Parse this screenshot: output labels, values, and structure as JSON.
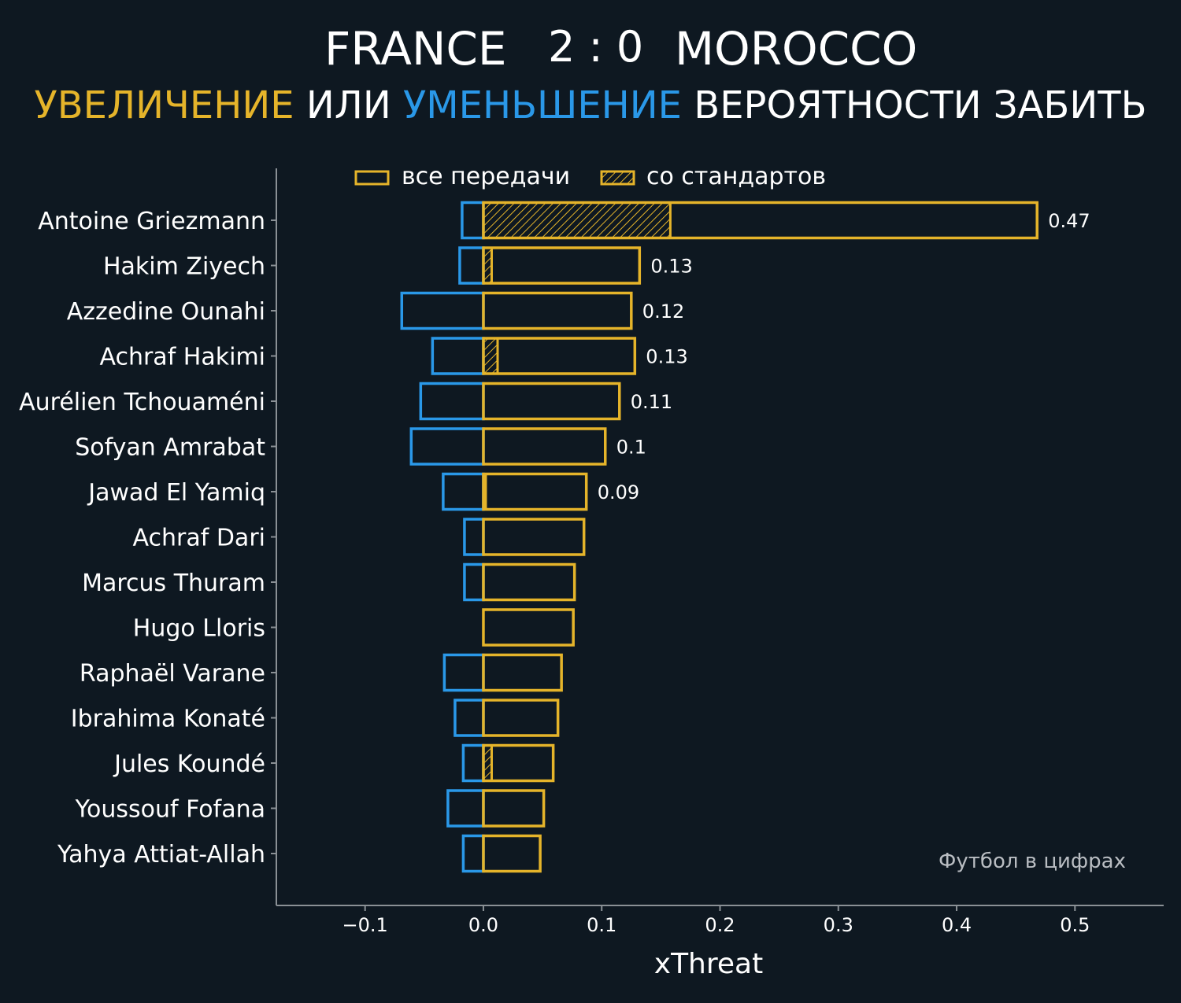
{
  "header": {
    "home_team": "FRANCE",
    "score": "2 : 0",
    "away_team": "MOROCCO",
    "subtitle_increase": "УВЕЛИЧЕНИЕ",
    "subtitle_or": "ИЛИ",
    "subtitle_decrease": "УМЕНЬШЕНИЕ",
    "subtitle_rest": "ВЕРОЯТНОСТИ ЗАБИТЬ"
  },
  "watermark": "Футбол в цифрах",
  "colors": {
    "background": "#0e1821",
    "increase": "#e5b42a",
    "decrease": "#2a98e8",
    "axis": "#8a9095",
    "text": "#ffffff"
  },
  "chart_data": {
    "type": "bar",
    "orientation": "horizontal",
    "xlabel": "xThreat",
    "ylabel": "",
    "xlim": [
      -0.175,
      0.575
    ],
    "xticks": [
      -0.1,
      0.0,
      0.1,
      0.2,
      0.3,
      0.4,
      0.5
    ],
    "xtick_labels": [
      "−0.1",
      "0.0",
      "0.1",
      "0.2",
      "0.3",
      "0.4",
      "0.5"
    ],
    "grid": false,
    "legend": {
      "placement": "top-center",
      "entries": [
        "все передачи",
        "со стандартов"
      ]
    },
    "categories": [
      "Antoine Griezmann",
      "Hakim Ziyech",
      "Azzedine Ounahi",
      "Achraf Hakimi",
      "Aurélien Tchouaméni",
      "Sofyan Amrabat",
      "Jawad El Yamiq",
      "Achraf Dari",
      "Marcus Thuram",
      "Hugo Lloris",
      "Raphaël Varane",
      "Ibrahima Konaté",
      "Jules Koundé",
      "Youssouf Fofana",
      "Yahya Attiat-Allah"
    ],
    "series": [
      {
        "name": "все передачи",
        "role": "increase",
        "values": [
          0.468,
          0.132,
          0.125,
          0.128,
          0.115,
          0.103,
          0.087,
          0.085,
          0.077,
          0.076,
          0.066,
          0.063,
          0.059,
          0.051,
          0.048
        ]
      },
      {
        "name": "со стандартов",
        "role": "increase-set-pieces",
        "values": [
          0.158,
          0.007,
          0.0,
          0.012,
          0.0,
          0.0,
          0.002,
          0.0,
          0.0,
          0.0,
          0.0,
          0.0,
          0.007,
          0.0,
          0.0
        ]
      },
      {
        "role": "decrease",
        "values": [
          -0.018,
          -0.02,
          -0.069,
          -0.043,
          -0.053,
          -0.061,
          -0.034,
          -0.016,
          -0.016,
          0.0,
          -0.033,
          -0.024,
          -0.017,
          -0.03,
          -0.017
        ]
      }
    ],
    "data_labels": [
      "0.47",
      "0.13",
      "0.12",
      "0.13",
      "0.11",
      "0.1",
      "0.09",
      "",
      "",
      "",
      "",
      "",
      "",
      "",
      ""
    ]
  }
}
